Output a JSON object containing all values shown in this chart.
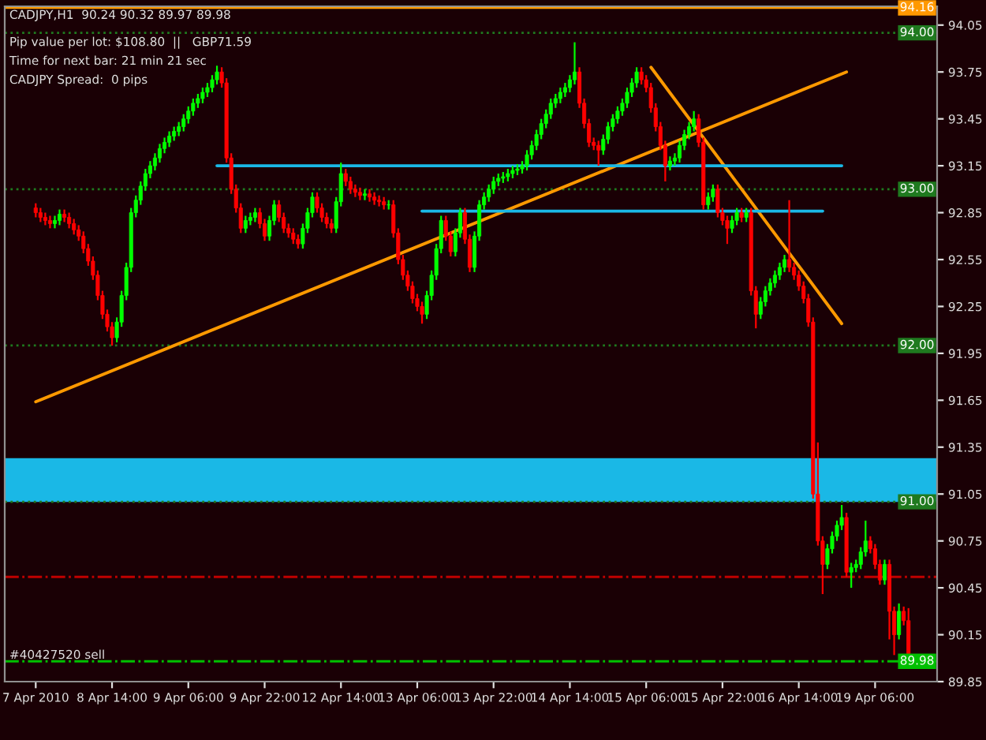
{
  "chart_data": {
    "type": "candlestick",
    "title": "CADJPY,H1  90.24 90.32 89.97 89.98",
    "annotations": [
      "Pip value per lot: $108.80  ||   GBP71.59",
      "Time for next bar: 21 min 21 sec",
      "CADJPY Spread:  0 pips",
      {
        "text": "#40427520 sell",
        "y": 89.98
      }
    ],
    "categories": [
      "7 Apr 2010",
      null,
      null,
      null,
      null,
      null,
      null,
      null,
      null,
      null,
      null,
      null,
      null,
      null,
      null,
      null,
      "8 Apr 14:00",
      null,
      null,
      null,
      null,
      null,
      null,
      null,
      null,
      null,
      null,
      null,
      null,
      null,
      null,
      null,
      "9 Apr 06:00",
      null,
      null,
      null,
      null,
      null,
      null,
      null,
      null,
      null,
      null,
      null,
      null,
      null,
      null,
      null,
      "9 Apr 22:00",
      null,
      null,
      null,
      null,
      null,
      null,
      null,
      null,
      null,
      null,
      null,
      null,
      null,
      null,
      null,
      "12 Apr 14:00",
      null,
      null,
      null,
      null,
      null,
      null,
      null,
      null,
      null,
      null,
      null,
      null,
      null,
      null,
      null,
      "13 Apr 06:00",
      null,
      null,
      null,
      null,
      null,
      null,
      null,
      null,
      null,
      null,
      null,
      null,
      null,
      null,
      null,
      "13 Apr 22:00",
      null,
      null,
      null,
      null,
      null,
      null,
      null,
      null,
      null,
      null,
      null,
      null,
      null,
      null,
      null,
      "14 Apr 14:00",
      null,
      null,
      null,
      null,
      null,
      null,
      null,
      null,
      null,
      null,
      null,
      null,
      null,
      null,
      null,
      "15 Apr 06:00",
      null,
      null,
      null,
      null,
      null,
      null,
      null,
      null,
      null,
      null,
      null,
      null,
      null,
      null,
      null,
      "15 Apr 22:00",
      null,
      null,
      null,
      null,
      null,
      null,
      null,
      null,
      null,
      null,
      null,
      null,
      null,
      null,
      null,
      "16 Apr 14:00",
      null,
      null,
      null,
      null,
      null,
      null,
      null,
      null,
      null,
      null,
      null,
      null,
      null,
      null,
      null,
      "19 Apr 06:00",
      null,
      null,
      null,
      null,
      null,
      null,
      null
    ],
    "ohlc": [
      [
        92.88,
        92.91,
        92.82,
        92.85
      ],
      [
        92.85,
        92.88,
        92.79,
        92.82
      ],
      [
        92.82,
        92.85,
        92.77,
        92.8
      ],
      [
        92.8,
        92.83,
        92.75,
        92.78
      ],
      [
        92.78,
        92.83,
        92.75,
        92.8
      ],
      [
        92.8,
        92.87,
        92.77,
        92.84
      ],
      [
        92.84,
        92.87,
        92.79,
        92.82
      ],
      [
        92.82,
        92.85,
        92.75,
        92.78
      ],
      [
        92.78,
        92.81,
        92.71,
        92.74
      ],
      [
        92.74,
        92.77,
        92.67,
        92.7
      ],
      [
        92.7,
        92.73,
        92.59,
        92.62
      ],
      [
        92.62,
        92.65,
        92.51,
        92.54
      ],
      [
        92.54,
        92.57,
        92.42,
        92.45
      ],
      [
        92.45,
        92.48,
        92.29,
        92.32
      ],
      [
        92.32,
        92.35,
        92.17,
        92.2
      ],
      [
        92.2,
        92.23,
        92.09,
        92.12
      ],
      [
        92.12,
        92.15,
        92.0,
        92.05
      ],
      [
        92.05,
        92.18,
        92.02,
        92.15
      ],
      [
        92.15,
        92.35,
        92.12,
        92.32
      ],
      [
        92.32,
        92.53,
        92.29,
        92.5
      ],
      [
        92.5,
        92.88,
        92.47,
        92.85
      ],
      [
        92.85,
        92.96,
        92.82,
        92.93
      ],
      [
        92.93,
        93.05,
        92.9,
        93.02
      ],
      [
        93.02,
        93.13,
        92.99,
        93.1
      ],
      [
        93.1,
        93.18,
        93.07,
        93.15
      ],
      [
        93.15,
        93.23,
        93.12,
        93.2
      ],
      [
        93.2,
        93.29,
        93.17,
        93.26
      ],
      [
        93.26,
        93.33,
        93.23,
        93.3
      ],
      [
        93.3,
        93.37,
        93.27,
        93.34
      ],
      [
        93.34,
        93.4,
        93.31,
        93.37
      ],
      [
        93.37,
        93.43,
        93.34,
        93.4
      ],
      [
        93.4,
        93.48,
        93.37,
        93.45
      ],
      [
        93.45,
        93.53,
        93.42,
        93.5
      ],
      [
        93.5,
        93.58,
        93.47,
        93.55
      ],
      [
        93.55,
        93.61,
        93.52,
        93.58
      ],
      [
        93.58,
        93.65,
        93.55,
        93.62
      ],
      [
        93.62,
        93.68,
        93.59,
        93.65
      ],
      [
        93.65,
        93.73,
        93.62,
        93.7
      ],
      [
        93.7,
        93.79,
        93.67,
        93.75
      ],
      [
        93.75,
        93.78,
        93.65,
        93.68
      ],
      [
        93.68,
        93.71,
        93.17,
        93.2
      ],
      [
        93.2,
        93.23,
        92.97,
        93.0
      ],
      [
        93.0,
        93.03,
        92.85,
        92.88
      ],
      [
        92.88,
        92.91,
        92.72,
        92.75
      ],
      [
        92.75,
        92.83,
        92.72,
        92.8
      ],
      [
        92.8,
        92.85,
        92.77,
        92.82
      ],
      [
        92.82,
        92.88,
        92.79,
        92.85
      ],
      [
        92.85,
        92.88,
        92.75,
        92.78
      ],
      [
        92.78,
        92.81,
        92.67,
        92.7
      ],
      [
        92.7,
        92.83,
        92.67,
        92.8
      ],
      [
        92.8,
        92.93,
        92.77,
        92.9
      ],
      [
        92.9,
        92.93,
        92.79,
        92.82
      ],
      [
        92.82,
        92.85,
        92.72,
        92.75
      ],
      [
        92.75,
        92.78,
        92.69,
        92.72
      ],
      [
        92.72,
        92.75,
        92.65,
        92.68
      ],
      [
        92.68,
        92.71,
        92.62,
        92.65
      ],
      [
        92.65,
        92.78,
        92.62,
        92.75
      ],
      [
        92.75,
        92.88,
        92.72,
        92.85
      ],
      [
        92.85,
        92.98,
        92.82,
        92.95
      ],
      [
        92.95,
        92.98,
        92.85,
        92.88
      ],
      [
        92.88,
        92.91,
        92.79,
        92.82
      ],
      [
        92.82,
        92.85,
        92.75,
        92.78
      ],
      [
        92.78,
        92.81,
        92.72,
        92.75
      ],
      [
        92.75,
        92.95,
        92.72,
        92.92
      ],
      [
        92.92,
        93.17,
        92.89,
        93.1
      ],
      [
        93.1,
        93.13,
        93.02,
        93.05
      ],
      [
        93.05,
        93.08,
        92.97,
        93.0
      ],
      [
        93.0,
        93.03,
        92.95,
        92.98
      ],
      [
        92.98,
        93.01,
        92.93,
        92.96
      ],
      [
        92.96,
        93.0,
        92.93,
        92.97
      ],
      [
        92.97,
        93.0,
        92.92,
        92.95
      ],
      [
        92.95,
        92.98,
        92.9,
        92.93
      ],
      [
        92.93,
        92.96,
        92.89,
        92.92
      ],
      [
        92.92,
        92.95,
        92.87,
        92.9
      ],
      [
        92.9,
        92.93,
        92.87,
        92.9
      ],
      [
        92.9,
        92.93,
        92.69,
        92.72
      ],
      [
        92.72,
        92.75,
        92.52,
        92.55
      ],
      [
        92.55,
        92.58,
        92.42,
        92.45
      ],
      [
        92.45,
        92.48,
        92.35,
        92.38
      ],
      [
        92.38,
        92.41,
        92.27,
        92.3
      ],
      [
        92.3,
        92.33,
        92.22,
        92.25
      ],
      [
        92.25,
        92.28,
        92.14,
        92.2
      ],
      [
        92.2,
        92.35,
        92.17,
        92.32
      ],
      [
        92.32,
        92.48,
        92.29,
        92.45
      ],
      [
        92.45,
        92.65,
        92.42,
        92.62
      ],
      [
        92.62,
        92.83,
        92.59,
        92.8
      ],
      [
        92.8,
        92.83,
        92.67,
        92.7
      ],
      [
        92.7,
        92.73,
        92.57,
        92.6
      ],
      [
        92.6,
        92.75,
        92.57,
        92.72
      ],
      [
        92.72,
        92.88,
        92.69,
        92.85
      ],
      [
        92.85,
        92.88,
        92.65,
        92.68
      ],
      [
        92.68,
        92.71,
        92.47,
        92.5
      ],
      [
        92.5,
        92.73,
        92.47,
        92.7
      ],
      [
        92.7,
        92.93,
        92.67,
        92.9
      ],
      [
        92.9,
        92.98,
        92.87,
        92.95
      ],
      [
        92.95,
        93.03,
        92.92,
        93.0
      ],
      [
        93.0,
        93.08,
        92.97,
        93.05
      ],
      [
        93.05,
        93.1,
        93.02,
        93.07
      ],
      [
        93.07,
        93.11,
        93.04,
        93.08
      ],
      [
        93.08,
        93.13,
        93.05,
        93.1
      ],
      [
        93.1,
        93.15,
        93.07,
        93.12
      ],
      [
        93.12,
        93.16,
        93.09,
        93.13
      ],
      [
        93.13,
        93.18,
        93.1,
        93.15
      ],
      [
        93.15,
        93.25,
        93.12,
        93.22
      ],
      [
        93.22,
        93.31,
        93.19,
        93.28
      ],
      [
        93.28,
        93.38,
        93.25,
        93.35
      ],
      [
        93.35,
        93.45,
        93.32,
        93.42
      ],
      [
        93.42,
        93.51,
        93.39,
        93.48
      ],
      [
        93.48,
        93.58,
        93.45,
        93.55
      ],
      [
        93.55,
        93.61,
        93.52,
        93.58
      ],
      [
        93.58,
        93.65,
        93.55,
        93.62
      ],
      [
        93.62,
        93.68,
        93.59,
        93.65
      ],
      [
        93.65,
        93.73,
        93.62,
        93.7
      ],
      [
        93.7,
        93.94,
        93.67,
        93.75
      ],
      [
        93.75,
        93.78,
        93.52,
        93.55
      ],
      [
        93.55,
        93.58,
        93.39,
        93.42
      ],
      [
        93.42,
        93.45,
        93.27,
        93.3
      ],
      [
        93.3,
        93.33,
        93.25,
        93.28
      ],
      [
        93.28,
        93.31,
        93.15,
        93.25
      ],
      [
        93.25,
        93.35,
        93.22,
        93.32
      ],
      [
        93.32,
        93.43,
        93.29,
        93.4
      ],
      [
        93.4,
        93.48,
        93.37,
        93.45
      ],
      [
        93.45,
        93.53,
        93.42,
        93.5
      ],
      [
        93.5,
        93.58,
        93.47,
        93.55
      ],
      [
        93.55,
        93.65,
        93.52,
        93.62
      ],
      [
        93.62,
        93.71,
        93.59,
        93.68
      ],
      [
        93.68,
        93.78,
        93.65,
        93.75
      ],
      [
        93.75,
        93.78,
        93.67,
        93.7
      ],
      [
        93.7,
        93.73,
        93.62,
        93.65
      ],
      [
        93.65,
        93.68,
        93.49,
        93.52
      ],
      [
        93.52,
        93.55,
        93.37,
        93.4
      ],
      [
        93.4,
        93.43,
        93.25,
        93.28
      ],
      [
        93.28,
        93.31,
        93.05,
        93.15
      ],
      [
        93.15,
        93.21,
        93.12,
        93.18
      ],
      [
        93.18,
        93.23,
        93.15,
        93.2
      ],
      [
        93.2,
        93.31,
        93.17,
        93.28
      ],
      [
        93.28,
        93.38,
        93.25,
        93.35
      ],
      [
        93.35,
        93.43,
        93.32,
        93.4
      ],
      [
        93.4,
        93.5,
        93.37,
        93.45
      ],
      [
        93.45,
        93.48,
        93.27,
        93.3
      ],
      [
        93.3,
        93.33,
        92.87,
        92.9
      ],
      [
        92.9,
        92.98,
        92.87,
        92.95
      ],
      [
        92.95,
        93.03,
        92.92,
        93.0
      ],
      [
        93.0,
        93.03,
        92.82,
        92.85
      ],
      [
        92.85,
        92.88,
        92.77,
        92.8
      ],
      [
        92.8,
        92.83,
        92.65,
        92.75
      ],
      [
        92.75,
        92.83,
        92.72,
        92.8
      ],
      [
        92.8,
        92.88,
        92.77,
        92.85
      ],
      [
        92.85,
        92.88,
        92.79,
        92.82
      ],
      [
        92.82,
        92.88,
        92.79,
        92.85
      ],
      [
        92.85,
        92.88,
        92.32,
        92.35
      ],
      [
        92.35,
        92.38,
        92.11,
        92.2
      ],
      [
        92.2,
        92.31,
        92.17,
        92.28
      ],
      [
        92.28,
        92.38,
        92.25,
        92.35
      ],
      [
        92.35,
        92.43,
        92.32,
        92.4
      ],
      [
        92.4,
        92.48,
        92.37,
        92.45
      ],
      [
        92.45,
        92.53,
        92.42,
        92.5
      ],
      [
        92.5,
        92.58,
        92.47,
        92.55
      ],
      [
        92.55,
        92.93,
        92.47,
        92.5
      ],
      [
        92.5,
        92.53,
        92.42,
        92.45
      ],
      [
        92.45,
        92.48,
        92.35,
        92.38
      ],
      [
        92.38,
        92.41,
        92.27,
        92.3
      ],
      [
        92.3,
        92.33,
        92.12,
        92.15
      ],
      [
        92.15,
        92.18,
        91.02,
        91.05
      ],
      [
        91.05,
        91.38,
        90.72,
        90.75
      ],
      [
        90.75,
        90.78,
        90.41,
        90.6
      ],
      [
        90.6,
        90.73,
        90.57,
        90.7
      ],
      [
        90.7,
        90.81,
        90.67,
        90.78
      ],
      [
        90.78,
        90.88,
        90.75,
        90.85
      ],
      [
        90.85,
        90.98,
        90.82,
        90.9
      ],
      [
        90.9,
        90.93,
        90.52,
        90.55
      ],
      [
        90.55,
        90.61,
        90.45,
        90.58
      ],
      [
        90.58,
        90.63,
        90.55,
        90.6
      ],
      [
        90.6,
        90.71,
        90.57,
        90.68
      ],
      [
        90.68,
        90.88,
        90.65,
        90.75
      ],
      [
        90.75,
        90.78,
        90.67,
        90.7
      ],
      [
        90.7,
        90.73,
        90.57,
        90.6
      ],
      [
        90.6,
        90.63,
        90.47,
        90.5
      ],
      [
        90.5,
        90.63,
        90.47,
        90.6
      ],
      [
        90.6,
        90.63,
        90.12,
        90.3
      ],
      [
        90.3,
        90.33,
        90.02,
        90.15
      ],
      [
        90.15,
        90.35,
        90.12,
        90.3
      ],
      [
        90.3,
        90.33,
        90.21,
        90.24
      ],
      [
        90.24,
        90.32,
        89.97,
        89.98
      ]
    ],
    "series": [
      {
        "type": "line",
        "color": "#ff9900",
        "values": [
          91.64,
          null,
          null,
          null,
          null,
          null,
          null,
          null,
          null,
          null,
          null,
          null,
          null,
          null,
          null,
          null,
          null,
          null,
          null,
          null,
          null,
          null,
          null,
          null,
          null,
          null,
          null,
          null,
          null,
          null,
          null,
          null,
          null,
          null,
          null,
          null,
          null,
          null,
          null,
          null,
          null,
          null,
          null,
          null,
          null,
          null,
          null,
          null,
          null,
          null,
          null,
          null,
          null,
          null,
          null,
          null,
          null,
          null,
          null,
          null,
          null,
          null,
          null,
          null,
          null,
          null,
          null,
          null,
          null,
          null,
          null,
          null,
          null,
          null,
          null,
          null,
          null,
          null,
          null,
          null,
          null,
          null,
          null,
          null,
          null,
          null,
          null,
          null,
          null,
          null,
          null,
          null,
          null,
          null,
          null,
          null,
          null,
          null,
          null,
          null,
          null,
          null,
          null,
          null,
          null,
          null,
          null,
          null,
          null,
          null,
          null,
          null,
          null,
          null,
          null,
          null,
          null,
          null,
          null,
          null,
          null,
          null,
          null,
          null,
          null,
          null,
          null,
          null,
          null,
          null,
          null,
          null,
          null,
          null,
          null,
          null,
          null,
          null,
          null,
          null,
          null,
          null,
          null,
          null,
          null,
          null,
          null,
          null,
          null,
          null,
          null,
          null,
          null,
          null,
          null,
          null,
          null,
          null,
          null,
          null,
          null,
          null,
          null,
          null,
          null,
          null,
          null,
          null,
          null,
          null,
          93.75,
          null,
          null,
          null,
          null,
          null,
          null,
          null,
          null,
          null,
          null,
          null,
          null,
          null
        ]
      },
      {
        "type": "line",
        "color": "#ff9900",
        "values": [
          null,
          null,
          null,
          null,
          null,
          null,
          null,
          null,
          null,
          null,
          null,
          null,
          null,
          null,
          null,
          null,
          null,
          null,
          null,
          null,
          null,
          null,
          null,
          null,
          null,
          null,
          null,
          null,
          null,
          null,
          null,
          null,
          null,
          null,
          null,
          null,
          null,
          null,
          null,
          null,
          null,
          null,
          null,
          null,
          null,
          null,
          null,
          null,
          null,
          null,
          null,
          null,
          null,
          null,
          null,
          null,
          null,
          null,
          null,
          null,
          null,
          null,
          null,
          null,
          null,
          null,
          null,
          null,
          null,
          null,
          null,
          null,
          null,
          null,
          null,
          null,
          null,
          null,
          null,
          null,
          null,
          null,
          null,
          null,
          null,
          null,
          null,
          null,
          null,
          null,
          null,
          null,
          null,
          null,
          null,
          null,
          null,
          null,
          null,
          null,
          null,
          null,
          null,
          null,
          null,
          null,
          null,
          null,
          null,
          null,
          null,
          null,
          null,
          null,
          null,
          null,
          null,
          null,
          null,
          null,
          null,
          null,
          null,
          null,
          null,
          null,
          null,
          null,
          null,
          93.78,
          null,
          null,
          null,
          null,
          null,
          null,
          null,
          null,
          null,
          null,
          null,
          null,
          null,
          null,
          null,
          null,
          null,
          null,
          null,
          null,
          null,
          null,
          null,
          null,
          null,
          null,
          null,
          null,
          null,
          null,
          null,
          null,
          null,
          null,
          null,
          null,
          null,
          null,
          null,
          92.14,
          null,
          null,
          null,
          null,
          null,
          null,
          null,
          null,
          null,
          null,
          null,
          null,
          null,
          null
        ]
      },
      {
        "type": "line",
        "color": "#1ab8e6",
        "values": [
          null,
          null,
          null,
          null,
          null,
          null,
          null,
          null,
          null,
          null,
          null,
          null,
          null,
          null,
          null,
          null,
          null,
          null,
          null,
          null,
          null,
          null,
          null,
          null,
          null,
          null,
          null,
          null,
          null,
          null,
          null,
          null,
          null,
          null,
          null,
          null,
          null,
          null,
          93.15,
          null,
          null,
          null,
          null,
          null,
          null,
          null,
          null,
          null,
          null,
          null,
          null,
          null,
          null,
          null,
          null,
          null,
          null,
          null,
          null,
          null,
          null,
          null,
          null,
          null,
          null,
          null,
          null,
          null,
          null,
          null,
          null,
          null,
          null,
          null,
          null,
          null,
          null,
          null,
          null,
          null,
          null,
          null,
          null,
          null,
          null,
          null,
          null,
          null,
          null,
          null,
          null,
          null,
          null,
          null,
          null,
          null,
          null,
          null,
          null,
          null,
          null,
          null,
          null,
          null,
          null,
          null,
          null,
          null,
          null,
          null,
          null,
          null,
          null,
          null,
          null,
          null,
          null,
          null,
          null,
          null,
          null,
          null,
          null,
          null,
          null,
          null,
          null,
          null,
          null,
          null,
          null,
          null,
          null,
          null,
          null,
          null,
          null,
          null,
          null,
          null,
          null,
          null,
          null,
          null,
          null,
          null,
          null,
          null,
          null,
          null,
          null,
          null,
          null,
          null,
          null,
          null,
          null,
          null,
          null,
          null,
          null,
          null,
          null,
          null,
          null,
          null,
          null,
          null,
          null,
          93.15,
          null,
          null,
          null,
          null,
          null,
          null,
          null,
          null,
          null,
          null,
          null,
          null,
          null,
          null
        ]
      },
      {
        "type": "line",
        "color": "#1ab8e6",
        "values": [
          null,
          null,
          null,
          null,
          null,
          null,
          null,
          null,
          null,
          null,
          null,
          null,
          null,
          null,
          null,
          null,
          null,
          null,
          null,
          null,
          null,
          null,
          null,
          null,
          null,
          null,
          null,
          null,
          null,
          null,
          null,
          null,
          null,
          null,
          null,
          null,
          null,
          null,
          null,
          null,
          null,
          null,
          null,
          null,
          null,
          null,
          null,
          null,
          null,
          null,
          null,
          null,
          null,
          null,
          null,
          null,
          null,
          null,
          null,
          null,
          null,
          null,
          null,
          null,
          null,
          null,
          null,
          null,
          null,
          null,
          null,
          null,
          null,
          null,
          null,
          null,
          null,
          null,
          null,
          null,
          null,
          92.86,
          null,
          null,
          null,
          null,
          null,
          null,
          null,
          null,
          null,
          null,
          null,
          null,
          null,
          null,
          null,
          null,
          null,
          null,
          null,
          null,
          null,
          null,
          null,
          null,
          null,
          null,
          null,
          null,
          null,
          null,
          null,
          null,
          null,
          null,
          null,
          null,
          null,
          null,
          null,
          null,
          null,
          null,
          null,
          null,
          null,
          null,
          null,
          null,
          null,
          null,
          null,
          null,
          null,
          null,
          null,
          null,
          null,
          null,
          null,
          null,
          null,
          null,
          null,
          null,
          null,
          null,
          null,
          null,
          null,
          null,
          null,
          null,
          null,
          null,
          null,
          null,
          null,
          null,
          null,
          null,
          null,
          null,
          null,
          92.86,
          null,
          null,
          null,
          null,
          null,
          null,
          null,
          null,
          null,
          null,
          null,
          null,
          null,
          null,
          null,
          null,
          null,
          null
        ]
      }
    ],
    "bands": [
      {
        "axis": "y",
        "from": 91.0,
        "to": 91.28,
        "color": "#1ab8e6"
      }
    ],
    "ref_lines": [
      {
        "axis": "y",
        "value": 94.16,
        "label": "94.16",
        "color": "#ff9900",
        "line_style": "solid"
      },
      {
        "axis": "y",
        "value": 94.0,
        "label": "94.00",
        "color": "#1f7a1f",
        "line_style": "dotted"
      },
      {
        "axis": "y",
        "value": 93.0,
        "label": "93.00",
        "color": "#1f7a1f",
        "line_style": "dotted"
      },
      {
        "axis": "y",
        "value": 92.0,
        "label": "92.00",
        "color": "#1f7a1f",
        "line_style": "dotted"
      },
      {
        "axis": "y",
        "value": 91.0,
        "label": "91.00",
        "color": "#1f7a1f",
        "line_style": "dotted"
      },
      {
        "axis": "y",
        "value": 90.52,
        "color": "#c00000",
        "line_style": "dashdot"
      },
      {
        "axis": "y",
        "value": 89.98,
        "label": "89.98",
        "color": "#00c000",
        "line_style": "dashdot"
      }
    ],
    "ylim": [
      89.85,
      94.17
    ],
    "yticks": [
      89.85,
      90.15,
      90.45,
      90.75,
      91.05,
      91.35,
      91.65,
      91.95,
      92.25,
      92.55,
      92.85,
      93.15,
      93.45,
      93.75,
      94.05
    ],
    "grid": false,
    "legend": false
  }
}
